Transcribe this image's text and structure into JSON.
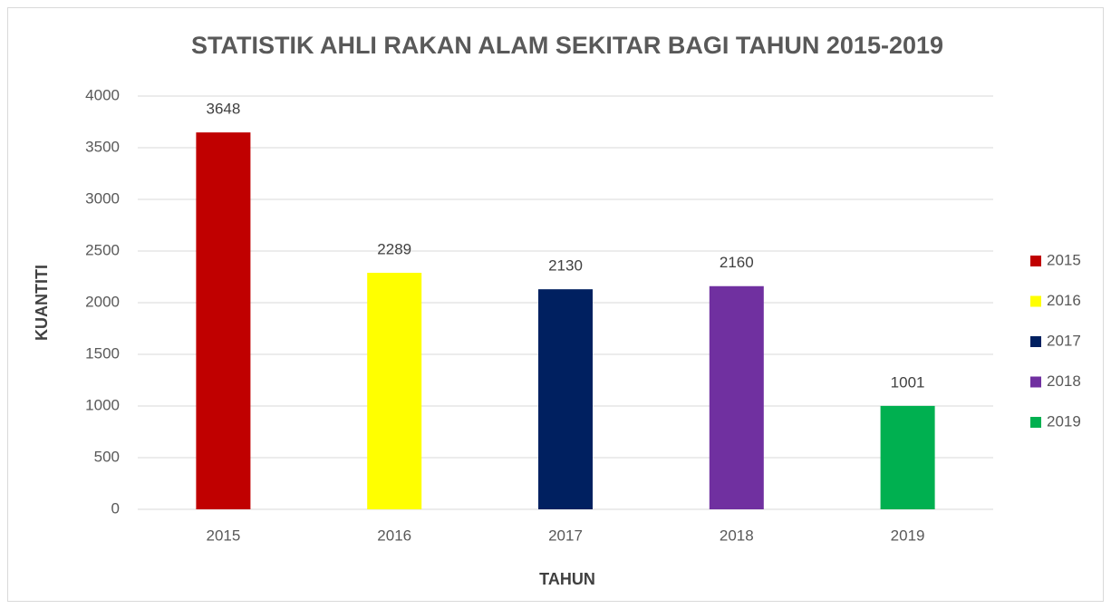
{
  "chart_data": {
    "type": "bar",
    "title": "STATISTIK AHLI RAKAN ALAM SEKITAR BAGI TAHUN 2015-2019",
    "x_label": "TAHUN",
    "y_label": "KUANTITI",
    "categories": [
      "2015",
      "2016",
      "2017",
      "2018",
      "2019"
    ],
    "values": [
      3648,
      2289,
      2130,
      2160,
      1001
    ],
    "colors": [
      "#c00000",
      "#ffff00",
      "#002060",
      "#7030a0",
      "#00b050"
    ],
    "ylim": [
      0,
      4000
    ],
    "yticks": [
      0,
      500,
      1000,
      1500,
      2000,
      2500,
      3000,
      3500,
      4000
    ],
    "grid": true,
    "legend": "right"
  }
}
